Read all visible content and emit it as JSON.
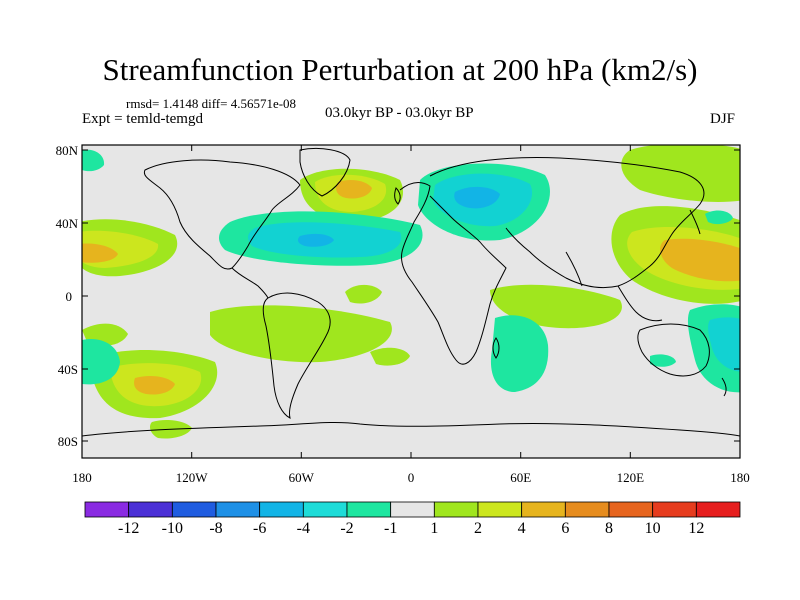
{
  "title": "Streamfunction Perturbation at 200 hPa (km2/s)",
  "stats_line": "rmsd= 1.4148 diff= 4.56571e-08",
  "experiment": "Expt = temld-temgd",
  "period": "03.0kyr BP - 03.0kyr BP",
  "season": "DJF",
  "lat_labels": [
    "80N",
    "40N",
    "0",
    "40S",
    "80S"
  ],
  "lon_labels": [
    "180",
    "120W",
    "60W",
    "0",
    "60E",
    "120E",
    "180"
  ],
  "colorbar": {
    "labels": [
      "-12",
      "-10",
      "-8",
      "-6",
      "-4",
      "-2",
      "-1",
      "1",
      "2",
      "4",
      "6",
      "8",
      "10",
      "12"
    ],
    "colors": [
      "#8a2be2",
      "#4b30d6",
      "#1f5ce0",
      "#1e90e6",
      "#12b4e6",
      "#1edcd8",
      "#1ee6a0",
      "#e6e6e6",
      "#a0e61e",
      "#cce61e",
      "#e6b41e",
      "#e68c1e",
      "#e6641e",
      "#e63c1e",
      "#e61e1e"
    ]
  },
  "colors": {
    "background": "#e6e6e6",
    "neg_1": "#1ee6a0",
    "neg_2": "#12d2d2",
    "neg_4": "#12b4e6",
    "pos_1": "#a0e61e",
    "pos_2": "#cce61e",
    "pos_4": "#e6b41e",
    "pos_6": "#e68c1e"
  }
}
